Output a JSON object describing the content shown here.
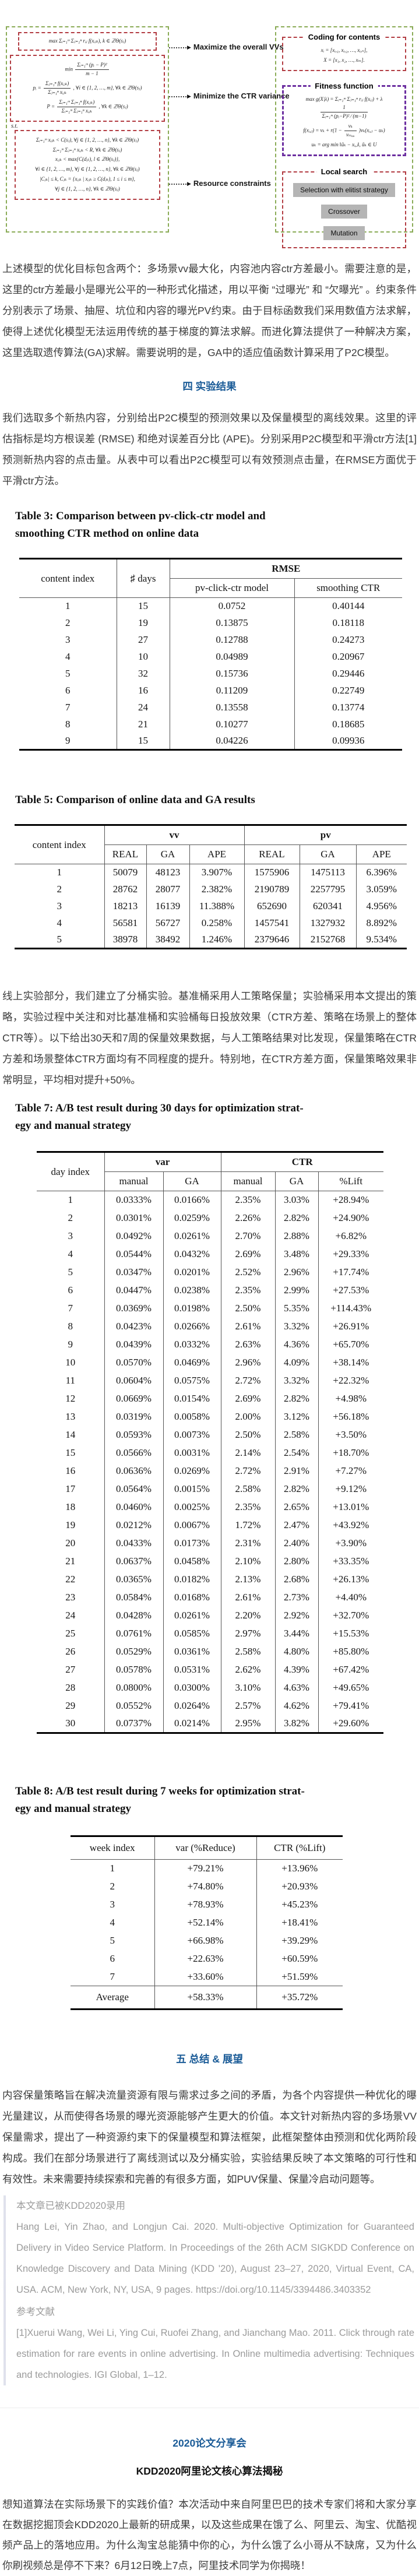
{
  "diagram": {
    "objective1": "max Σᵢ₌₁ᵐ Σⱼ₌₁ⁿ rᵢⱼ f(xᵢⱼₖ), k ∈ ℤΘ(sⱼ)",
    "obj2_min": "min",
    "obj2_f1_num": "Σᵢ₌₁ᵐ (pᵢ − P)²",
    "obj2_f1_den": "m − 1",
    "obj2_p_lhs": "pᵢ =",
    "obj2_f2_num": "Σⱼ₌₁ⁿ f(xᵢⱼₖ)",
    "obj2_f2_den": "Σⱼ₌₁ⁿ xᵢⱼₖ",
    "obj2_p_rhs": ", ∀i ∈ {1, 2, …, m}, ∀k ∈ ℤΘ(sⱼ)",
    "obj2_P_lhs": "P =",
    "obj2_f3_num": "Σᵢ₌₁ᵐ Σⱼ₌₁ⁿ f(xᵢⱼₖ)",
    "obj2_f3_den": "Σᵢ₌₁ᵐ Σⱼ₌₁ⁿ xᵢⱼₖ",
    "obj2_P_rhs": ", ∀k ∈ ℤΘ(sⱼ)",
    "st_label": "s.t.",
    "constraint1": "Σᵢ₌₁ᵐ xᵢⱼₖ < C(sⱼ), ∀j ∈ {1, 2, …, n}, ∀k ∈ ℤΘ(sⱼ)",
    "constraint2": "Σᵢ₌₁ᵐ Σⱼ₌₁ⁿ xᵢⱼₖ < R, ∀k ∈ ℤΘ(sⱼ)",
    "constraint3": "xᵢⱼₖ < max{C(dⱼₗ), l ∈ ℤΘ(sⱼ)},",
    "constraint4": "∀i ∈ {1, 2, …, m}, ∀j ∈ {1, 2, …, n}, ∀k ∈ ℤΘ(sⱼ)",
    "constraint5": "|Cⱼₖ| ≤ k, Cⱼₖ = {xᵢⱼₖ | xᵢⱼₖ ≥ C(dⱼₖ), 1 ≤ i ≤ m},",
    "constraint6": "∀j ∈ {1, 2, …, n}, ∀k ∈ ℤΘ(sⱼ)",
    "label_maximize": "Maximize the overall VVs",
    "label_minimize": "Minimize the CTR variance",
    "label_resource": "Resource constraints",
    "coding_title": "Coding for contents",
    "coding_line1": "xᵢ = [xᵢ,₁, xᵢ,₂, …, xᵢ,ₙ],",
    "coding_line2": "X = [x₁, x₂, …, xₘ].",
    "fitness_title": "Fitness function",
    "fit1_lhs": "max g(X|λ) = Σᵢ₌₁ᵐ Σⱼ₌₁ⁿ rᵢⱼ f(xᵢⱼ) + λ",
    "fit1_num": "1",
    "fit1_den": "Σᵢ₌₁ᵐ (pᵢ−P)² ∕ (m−1)",
    "fit2_pre": "f(xᵢ,ⱼ) = vₖ + r(1 −",
    "fit2_num": "vₖ",
    "fit2_den": "vₘₐₓ",
    "fit2_post": ")vₖ(xᵢ,ⱼ − uₖ)",
    "fit3": "uₖ = arg min ‖ũₖ − xᵢ,ⱼ‖, ũₖ ∈ U",
    "local_title": "Local search",
    "btn_selection": "Selection with elitist strategy",
    "btn_crossover": "Crossover",
    "btn_mutation": "Mutation"
  },
  "sections": {
    "p1": "上述模型的优化目标包含两个：多场景vv最大化，内容池内容ctr方差最小。需要注意的是，这里的ctr方差最小是曝光公平的一种形式化描述，用以平衡 “过曝光” 和 “欠曝光” 。约束条件分别表示了场景、抽屉、坑位和内容的曝光PV约束。由于目标函数我们采用数值方法求解，使得上述优化模型无法运用传统的基于梯度的算法求解。而进化算法提供了一种解决方案，这里选取遗传算法(GA)求解。需要说明的是，GA中的适应值函数计算采用了P2C模型。",
    "h_results": "四  实验结果",
    "p2": "我们选取多个新热内容，分别给出P2C模型的预测效果以及保量模型的离线效果。这里的评估指标是均方根误差 (RMSE) 和绝对误差百分比 (APE)。分别采用P2C模型和平滑ctr方法[1]预测新热内容的点击量。从表中可以看出P2C模型可以有效预测点击量，在RMSE方面优于平滑ctr方法。",
    "p3": "线上实验部分，我们建立了分桶实验。基准桶采用人工策略保量；实验桶采用本文提出的策略，实验过程中关注和对比基准桶和实验桶每日投放效果（CTR方差、策略在场景上的整体CTR等）。以下给出30天和7周的保量效果数据，与人工策略结果对比发现，保量策略在CTR方差和场景整体CTR方面均有不同程度的提升。特别地，在CTR方差方面，保量策略效果非常明显，平均相对提升+50%。",
    "h_summary": "五  总结 & 展望",
    "p4": "内容保量策略旨在解决流量资源有限与需求过多之间的矛盾，为各个内容提供一种优化的曝光量建议，从而使得各场景的曝光资源能够产生更大的价值。本文针对新热内容的多场景VV保量需求，提出了一种资源约束下的保量模型和算法框架，此框架整体由预测和优化两阶段构成。我们在部分场景进行了离线测试以及分桶实验，实验结果反映了本文策略的可行性和有效性。未来需要持续探索和完善的有很多方面，如PUV保量、保量冷启动问题等。"
  },
  "tables": {
    "table3": {
      "title_line1": "Table 3: Comparison between pv-click-ctr model and",
      "title_line2": "smoothing CTR method on online data",
      "headers": {
        "content_index": "content index",
        "days": "♯ days",
        "rmse": "RMSE",
        "model": "pv-click-ctr model",
        "smoothing": "smoothing CTR"
      },
      "rows": [
        [
          "1",
          "15",
          "0.0752",
          "0.40144"
        ],
        [
          "2",
          "19",
          "0.13875",
          "0.18118"
        ],
        [
          "3",
          "27",
          "0.12788",
          "0.24273"
        ],
        [
          "4",
          "10",
          "0.04989",
          "0.20967"
        ],
        [
          "5",
          "32",
          "0.15736",
          "0.29446"
        ],
        [
          "6",
          "16",
          "0.11209",
          "0.22749"
        ],
        [
          "7",
          "24",
          "0.13558",
          "0.13774"
        ],
        [
          "8",
          "21",
          "0.10277",
          "0.18685"
        ],
        [
          "9",
          "15",
          "0.04226",
          "0.09936"
        ]
      ]
    },
    "table5": {
      "title": "Table 5: Comparison of online data and GA results",
      "headers": {
        "content_index": "content index",
        "vv": "vv",
        "pv": "pv",
        "real": "REAL",
        "ga": "GA",
        "ape": "APE"
      },
      "rows": [
        [
          "1",
          "50079",
          "48123",
          "3.907%",
          "1575906",
          "1475113",
          "6.396%"
        ],
        [
          "2",
          "28762",
          "28077",
          "2.382%",
          "2190789",
          "2257795",
          "3.059%"
        ],
        [
          "3",
          "18213",
          "16139",
          "11.388%",
          "652690",
          "620341",
          "4.956%"
        ],
        [
          "4",
          "56581",
          "56727",
          "0.258%",
          "1457541",
          "1327932",
          "8.892%"
        ],
        [
          "5",
          "38978",
          "38492",
          "1.246%",
          "2379646",
          "2152768",
          "9.534%"
        ]
      ]
    },
    "table7": {
      "title_line1": "Table 7: A/B test result during 30 days for optimization strat-",
      "title_line2": "egy and manual strategy",
      "headers": {
        "day_index": "day index",
        "var": "var",
        "ctr": "CTR",
        "manual": "manual",
        "ga": "GA",
        "lift": "%Lift"
      },
      "rows": [
        [
          "1",
          "0.0333%",
          "0.0166%",
          "2.35%",
          "3.03%",
          "+28.94%"
        ],
        [
          "2",
          "0.0301%",
          "0.0259%",
          "2.26%",
          "2.82%",
          "+24.90%"
        ],
        [
          "3",
          "0.0492%",
          "0.0261%",
          "2.70%",
          "2.88%",
          "+6.82%"
        ],
        [
          "4",
          "0.0544%",
          "0.0432%",
          "2.69%",
          "3.48%",
          "+29.33%"
        ],
        [
          "5",
          "0.0347%",
          "0.0201%",
          "2.52%",
          "2.96%",
          "+17.74%"
        ],
        [
          "6",
          "0.0447%",
          "0.0238%",
          "2.35%",
          "2.99%",
          "+27.53%"
        ],
        [
          "7",
          "0.0369%",
          "0.0198%",
          "2.50%",
          "5.35%",
          "+114.43%"
        ],
        [
          "8",
          "0.0423%",
          "0.0266%",
          "2.61%",
          "3.32%",
          "+26.91%"
        ],
        [
          "9",
          "0.0439%",
          "0.0332%",
          "2.63%",
          "4.36%",
          "+65.70%"
        ],
        [
          "10",
          "0.0570%",
          "0.0469%",
          "2.96%",
          "4.09%",
          "+38.14%"
        ],
        [
          "11",
          "0.0604%",
          "0.0575%",
          "2.72%",
          "3.32%",
          "+22.32%"
        ],
        [
          "12",
          "0.0669%",
          "0.0154%",
          "2.69%",
          "2.82%",
          "+4.98%"
        ],
        [
          "13",
          "0.0319%",
          "0.0058%",
          "2.00%",
          "3.12%",
          "+56.18%"
        ],
        [
          "14",
          "0.0593%",
          "0.0073%",
          "2.50%",
          "2.58%",
          "+3.50%"
        ],
        [
          "15",
          "0.0566%",
          "0.0031%",
          "2.14%",
          "2.54%",
          "+18.70%"
        ],
        [
          "16",
          "0.0636%",
          "0.0269%",
          "2.72%",
          "2.91%",
          "+7.27%"
        ],
        [
          "17",
          "0.0564%",
          "0.0015%",
          "2.58%",
          "2.82%",
          "+9.12%"
        ],
        [
          "18",
          "0.0460%",
          "0.0025%",
          "2.35%",
          "2.65%",
          "+13.01%"
        ],
        [
          "19",
          "0.0212%",
          "0.0067%",
          "1.72%",
          "2.47%",
          "+43.92%"
        ],
        [
          "20",
          "0.0433%",
          "0.0173%",
          "2.31%",
          "2.40%",
          "+3.90%"
        ],
        [
          "21",
          "0.0637%",
          "0.0458%",
          "2.10%",
          "2.80%",
          "+33.35%"
        ],
        [
          "22",
          "0.0365%",
          "0.0182%",
          "2.13%",
          "2.68%",
          "+26.13%"
        ],
        [
          "23",
          "0.0584%",
          "0.0168%",
          "2.61%",
          "2.73%",
          "+4.40%"
        ],
        [
          "24",
          "0.0428%",
          "0.0261%",
          "2.20%",
          "2.92%",
          "+32.70%"
        ],
        [
          "25",
          "0.0761%",
          "0.0585%",
          "2.97%",
          "3.44%",
          "+15.53%"
        ],
        [
          "26",
          "0.0529%",
          "0.0361%",
          "2.58%",
          "4.80%",
          "+85.80%"
        ],
        [
          "27",
          "0.0578%",
          "0.0531%",
          "2.62%",
          "4.39%",
          "+67.42%"
        ],
        [
          "28",
          "0.0800%",
          "0.0300%",
          "3.10%",
          "4.63%",
          "+49.65%"
        ],
        [
          "29",
          "0.0552%",
          "0.0264%",
          "2.57%",
          "4.62%",
          "+79.41%"
        ],
        [
          "30",
          "0.0737%",
          "0.0214%",
          "2.95%",
          "3.82%",
          "+29.60%"
        ]
      ]
    },
    "table8": {
      "title_line1": "Table 8: A/B test result during 7 weeks for optimization strat-",
      "title_line2": "egy and manual strategy",
      "headers": {
        "week_index": "week index",
        "var_reduce": "var (%Reduce)",
        "ctr_lift": "CTR (%Lift)"
      },
      "rows": [
        [
          "1",
          "+79.21%",
          "+13.96%"
        ],
        [
          "2",
          "+74.80%",
          "+20.93%"
        ],
        [
          "3",
          "+78.93%",
          "+45.23%"
        ],
        [
          "4",
          "+52.14%",
          "+18.41%"
        ],
        [
          "5",
          "+66.98%",
          "+39.29%"
        ],
        [
          "6",
          "+22.63%",
          "+60.59%"
        ],
        [
          "7",
          "+33.60%",
          "+51.59%"
        ]
      ],
      "average": [
        "Average",
        "+58.33%",
        "+35.72%"
      ]
    }
  },
  "quote": {
    "accepted": "本文章已被KDD2020录用",
    "citation": "Hang Lei, Yin Zhao, and Longjun Cai. 2020. Multi-objective Optimization for Guaranteed Delivery in Video Service Platform. In Proceedings of the 26th ACM SIGKDD Conference on Knowledge Discovery and Data Mining (KDD '20), August 23–27, 2020, Virtual Event, CA, USA. ACM, New York, NY, USA, 9 pages. https://doi.org/10.1145/3394486.3403352",
    "ref_heading": "参考文献",
    "ref1": "[1]Xuerui Wang, Wei Li, Ying Cui, Ruofei Zhang, and Jianchang Mao. 2011. Click through rate estimation for rare events in online advertising. In Online multimedia advertising: Techniques and technologies. IGI Global, 1–12."
  },
  "footer": {
    "event_title": "2020论文分享会",
    "event_subtitle": "KDD2020阿里论文核心算法揭秘",
    "p": "想知道算法在实际场景下的实践价值？本次活动中来自阿里巴巴的技术专家们将和大家分享在数据挖掘顶会KDD2020上最新的研成果，以及这些成果在饿了么、阿里云、淘宝、优酷视频产品上的落地应用。为什么淘宝总能猜中你的心，为什么饿了么小哥从不缺席，又为什么你刷视频总是停不下来？6月12日晚上7点，阿里技术同学为你揭晓！"
  }
}
